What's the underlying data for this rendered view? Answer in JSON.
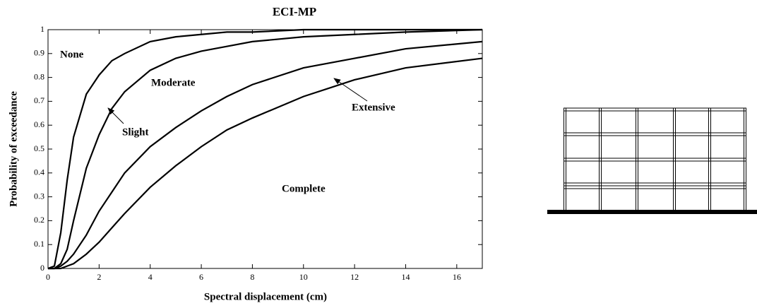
{
  "chart_data": {
    "type": "line",
    "title": "ECI-MP",
    "x_label": "Spectral displacement (cm)",
    "y_label": "Probability of exceedance",
    "x": [
      0,
      0.25,
      0.5,
      0.75,
      1,
      1.5,
      2,
      2.5,
      3,
      4,
      5,
      6,
      7,
      8,
      10,
      12,
      14,
      17
    ],
    "series": [
      {
        "name": "None",
        "color": "#000000",
        "values": [
          0,
          0.01,
          0.15,
          0.37,
          0.55,
          0.73,
          0.81,
          0.87,
          0.9,
          0.95,
          0.97,
          0.98,
          0.99,
          0.99,
          1,
          1,
          1,
          1
        ]
      },
      {
        "name": "Slight",
        "color": "#000000",
        "values": [
          0,
          0,
          0.02,
          0.08,
          0.2,
          0.42,
          0.56,
          0.67,
          0.74,
          0.83,
          0.88,
          0.91,
          0.93,
          0.95,
          0.97,
          0.98,
          0.99,
          1
        ]
      },
      {
        "name": "Moderate",
        "color": "#000000",
        "values": [
          0,
          0,
          0.01,
          0.03,
          0.06,
          0.14,
          0.24,
          0.32,
          0.4,
          0.51,
          0.59,
          0.66,
          0.72,
          0.77,
          0.84,
          0.88,
          0.92,
          0.95
        ]
      },
      {
        "name": "Extensive",
        "color": "#000000",
        "values": [
          0,
          0,
          0,
          0.01,
          0.02,
          0.06,
          0.11,
          0.17,
          0.23,
          0.34,
          0.43,
          0.51,
          0.58,
          0.63,
          0.72,
          0.79,
          0.84,
          0.88
        ]
      }
    ],
    "annotations": [
      "Complete"
    ],
    "xlim": [
      0,
      17
    ],
    "ylim": [
      0,
      1
    ],
    "xticks": [
      0,
      2,
      4,
      6,
      8,
      10,
      12,
      14,
      16
    ],
    "yticks": [
      0,
      0.1,
      0.2,
      0.3,
      0.4,
      0.5,
      0.6,
      0.7,
      0.8,
      0.9,
      1
    ]
  }
}
